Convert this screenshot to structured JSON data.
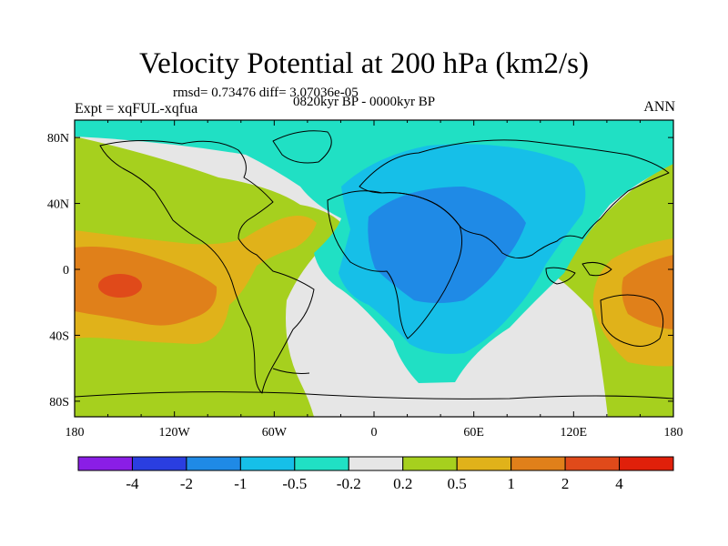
{
  "title": "Velocity Potential at 200 hPa (km2/s)",
  "stats": "rmsd= 0.73476 diff= 3.07036e-05",
  "experiment": "Expt = xqFUL-xqfua",
  "period": "0820kyr BP - 0000kyr BP",
  "season": "ANN",
  "lat_labels": [
    "80N",
    "40N",
    "0",
    "40S",
    "80S"
  ],
  "lon_labels": [
    "180",
    "120W",
    "60W",
    "0",
    "60E",
    "120E",
    "180"
  ],
  "colorbar": {
    "labels": [
      "-4",
      "-2",
      "-1",
      "-0.5",
      "-0.2",
      "0.2",
      "0.5",
      "1",
      "2",
      "4"
    ],
    "colors": [
      "#8a1ee6",
      "#2a3ee0",
      "#1f8ae6",
      "#16bfe8",
      "#20e0c4",
      "#e6e6e6",
      "#a6d01e",
      "#e0b21a",
      "#e0801a",
      "#e04a1a",
      "#e0200a"
    ]
  },
  "field_colors": {
    "bg": "#e6e6e6",
    "pos1": "#a6d01e",
    "pos2": "#e0b21a",
    "pos3": "#e0801a",
    "pos4": "#e04a1a",
    "neg1": "#20e0c4",
    "neg2": "#16bfe8",
    "neg3": "#1f8ae6"
  }
}
